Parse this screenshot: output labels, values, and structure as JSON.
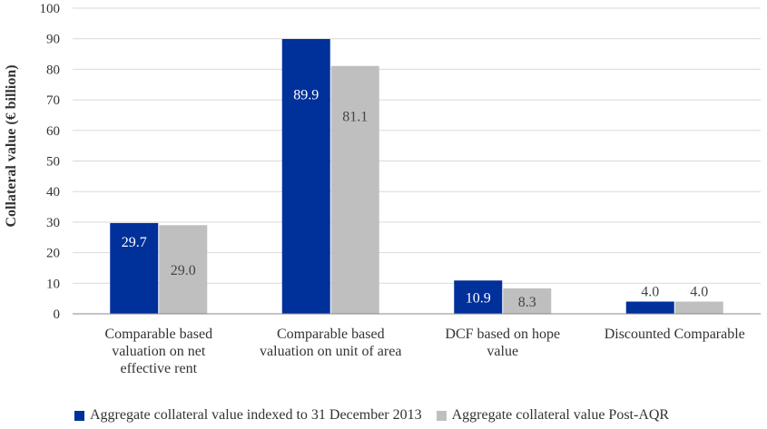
{
  "chart_data": {
    "type": "bar",
    "ylabel": "Collateral value (€ billion)",
    "ylim": [
      0,
      100
    ],
    "yticks": [
      0,
      10,
      20,
      30,
      40,
      50,
      60,
      70,
      80,
      90,
      100
    ],
    "categories": [
      [
        "Comparable based",
        "valuation on net",
        "effective rent"
      ],
      [
        "Comparable based",
        "valuation on unit of area"
      ],
      [
        "DCF based on hope",
        "value"
      ],
      [
        "Discounted   Comparable"
      ]
    ],
    "series": [
      {
        "name": "Aggregate collateral value indexed to 31 December 2013",
        "color": "#00309a",
        "labels": [
          "29.7",
          "89.9",
          "10.9",
          "4.0"
        ],
        "values": [
          29.7,
          89.9,
          10.9,
          4.0
        ]
      },
      {
        "name": "Aggregate collateral value Post-AQR",
        "color": "#bfbfbf",
        "labels": [
          "29.0",
          "81.1",
          "8.3",
          "4.0"
        ],
        "values": [
          29.0,
          81.1,
          8.3,
          4.0
        ]
      }
    ]
  }
}
